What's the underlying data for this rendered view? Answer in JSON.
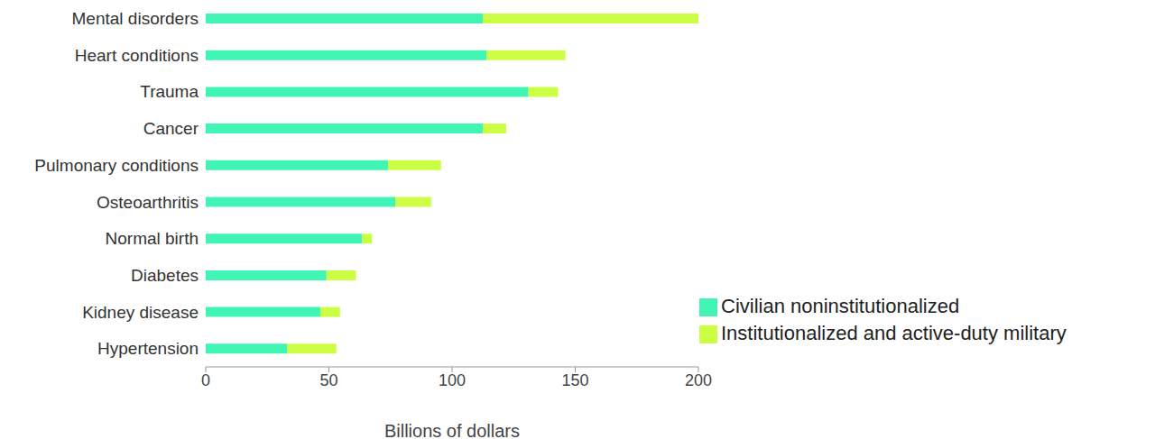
{
  "chart_data": {
    "type": "bar",
    "orientation": "horizontal",
    "stacked": true,
    "grid": false,
    "legend": "bottom right",
    "x_label": "Billions of dollars",
    "categories": [
      "Mental disorders",
      "Heart conditions",
      "Trauma",
      "Cancer",
      "Pulmonary conditions",
      "Osteoarthritis",
      "Normal birth",
      "Diabetes",
      "Kidney disease",
      "Hypertension"
    ],
    "series": [
      {
        "name": "Civilian noninstitutionalized",
        "color": "#40f5b4",
        "values": [
          112.5,
          114,
          131,
          112.5,
          74,
          77,
          63.5,
          49,
          46.5,
          33
        ]
      },
      {
        "name": "Institutionalized and active-duty military",
        "color": "#ccff44",
        "values": [
          87.5,
          32,
          12,
          9.5,
          21.5,
          14.5,
          4,
          12,
          8,
          20
        ]
      }
    ],
    "xlim": [
      0,
      200
    ],
    "xticks": [
      0,
      50,
      100,
      150,
      200
    ]
  }
}
